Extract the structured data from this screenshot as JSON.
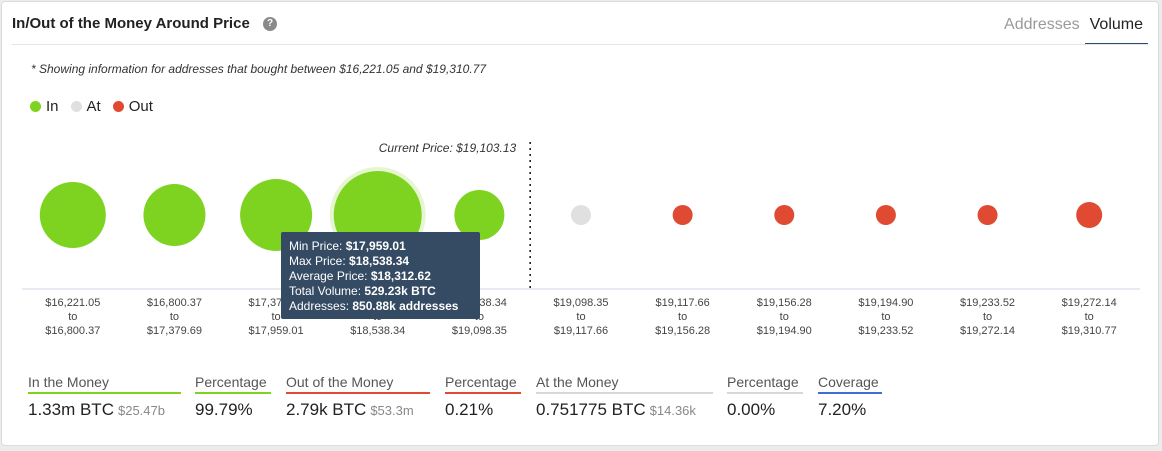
{
  "header": {
    "title": "In/Out of the Money Around Price",
    "help_icon": "question-circle-icon",
    "tabs": [
      {
        "label": "Addresses",
        "active": false
      },
      {
        "label": "Volume",
        "active": true
      }
    ]
  },
  "note": "* Showing information for addresses that bought between $16,221.05 and $19,310.77",
  "legend": [
    {
      "label": "In",
      "color": "#7ed321"
    },
    {
      "label": "At",
      "color": "#e0e0e0"
    },
    {
      "label": "Out",
      "color": "#e04a32"
    }
  ],
  "chart_data": {
    "type": "scatter",
    "current_price_label": "Current Price: $19,103.13",
    "current_price_after_bucket": 4,
    "categories": [
      {
        "from": "$16,221.05",
        "to": "$16,800.37",
        "status": "in",
        "size": 33
      },
      {
        "from": "$16,800.37",
        "to": "$17,379.69",
        "status": "in",
        "size": 31
      },
      {
        "from": "$17,379.69",
        "to": "$17,959.01",
        "status": "in",
        "size": 36
      },
      {
        "from": "$17,959.01",
        "to": "$18,538.34",
        "status": "in",
        "size": 44
      },
      {
        "from": "$18,538.34",
        "to": "$19,098.35",
        "status": "in",
        "size": 25
      },
      {
        "from": "$19,098.35",
        "to": "$19,117.66",
        "status": "at",
        "size": 10
      },
      {
        "from": "$19,117.66",
        "to": "$19,156.28",
        "status": "out",
        "size": 10
      },
      {
        "from": "$19,156.28",
        "to": "$19,194.90",
        "status": "out",
        "size": 10
      },
      {
        "from": "$19,194.90",
        "to": "$19,233.52",
        "status": "out",
        "size": 10
      },
      {
        "from": "$19,233.52",
        "to": "$19,272.14",
        "status": "out",
        "size": 10
      },
      {
        "from": "$19,272.14",
        "to": "$19,310.77",
        "status": "out",
        "size": 13
      }
    ],
    "connector": "to",
    "highlighted_index": 3
  },
  "tooltip": {
    "min_label": "Min Price:",
    "min_value": "$17,959.01",
    "max_label": "Max Price:",
    "max_value": "$18,538.34",
    "avg_label": "Average Price:",
    "avg_value": "$18,312.62",
    "vol_label": "Total Volume:",
    "vol_value": "529.23k BTC",
    "addr_label": "Addresses:",
    "addr_value": "850.88k addresses"
  },
  "stats": [
    {
      "label": "In the Money",
      "value": "1.33m BTC",
      "sub": "$25.47b",
      "bar": "#7ed321"
    },
    {
      "label": "Percentage",
      "value": "99.79%",
      "sub": "",
      "bar": "#7ed321"
    },
    {
      "label": "Out of the Money",
      "value": "2.79k BTC",
      "sub": "$53.3m",
      "bar": "#e04a32"
    },
    {
      "label": "Percentage",
      "value": "0.21%",
      "sub": "",
      "bar": "#e04a32"
    },
    {
      "label": "At the Money",
      "value": "0.751775 BTC",
      "sub": "$14.36k",
      "bar": "#d8d8d8"
    },
    {
      "label": "Percentage",
      "value": "0.00%",
      "sub": "",
      "bar": "#d8d8d8"
    },
    {
      "label": "Coverage",
      "value": "7.20%",
      "sub": "",
      "bar": "#3b6fd6"
    }
  ]
}
